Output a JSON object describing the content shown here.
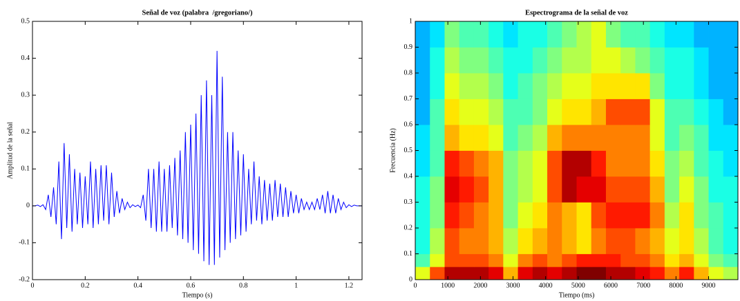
{
  "chart_data": [
    {
      "type": "line",
      "title": "Señal de voz (palabra  /gregoriano/)",
      "xlabel": "Tiempo (s)",
      "ylabel": "Amplitud de la señal",
      "color": "#0000ff",
      "x": [
        0,
        0.01,
        0.02,
        0.03,
        0.04,
        0.05,
        0.06,
        0.07,
        0.08,
        0.09,
        0.1,
        0.11,
        0.12,
        0.13,
        0.14,
        0.15,
        0.16,
        0.17,
        0.18,
        0.19,
        0.2,
        0.21,
        0.22,
        0.23,
        0.24,
        0.25,
        0.26,
        0.27,
        0.28,
        0.29,
        0.3,
        0.31,
        0.32,
        0.33,
        0.34,
        0.35,
        0.36,
        0.37,
        0.38,
        0.39,
        0.4,
        0.41,
        0.42,
        0.43,
        0.44,
        0.45,
        0.46,
        0.47,
        0.48,
        0.49,
        0.5,
        0.51,
        0.52,
        0.53,
        0.54,
        0.55,
        0.56,
        0.57,
        0.58,
        0.59,
        0.6,
        0.61,
        0.62,
        0.63,
        0.64,
        0.65,
        0.66,
        0.67,
        0.68,
        0.69,
        0.7,
        0.71,
        0.72,
        0.73,
        0.74,
        0.75,
        0.76,
        0.77,
        0.78,
        0.79,
        0.8,
        0.81,
        0.82,
        0.83,
        0.84,
        0.85,
        0.86,
        0.87,
        0.88,
        0.89,
        0.9,
        0.91,
        0.92,
        0.93,
        0.94,
        0.95,
        0.96,
        0.97,
        0.98,
        0.99,
        1,
        1.01,
        1.02,
        1.03,
        1.04,
        1.05,
        1.06,
        1.07,
        1.08,
        1.09,
        1.1,
        1.11,
        1.12,
        1.13,
        1.14,
        1.15,
        1.16,
        1.17,
        1.18,
        1.19,
        1.2,
        1.21,
        1.22,
        1.23,
        1.24,
        1.25
      ],
      "values": [
        0,
        0,
        0.002,
        -0.002,
        0.003,
        -0.01,
        0.03,
        -0.03,
        0.05,
        -0.05,
        0.12,
        -0.09,
        0.17,
        -0.06,
        0.14,
        -0.07,
        0.1,
        -0.05,
        0.09,
        -0.06,
        0.08,
        -0.05,
        0.12,
        -0.06,
        0.1,
        -0.05,
        0.11,
        -0.04,
        0.11,
        -0.05,
        0.09,
        -0.03,
        0.04,
        -0.02,
        0.02,
        -0.01,
        0.01,
        -0.005,
        0.003,
        -0.002,
        0.002,
        -0.005,
        0.03,
        -0.04,
        0.1,
        -0.06,
        0.1,
        -0.07,
        0.12,
        -0.07,
        0.1,
        -0.07,
        0.11,
        -0.06,
        0.13,
        -0.08,
        0.15,
        -0.09,
        0.2,
        -0.1,
        0.22,
        -0.12,
        0.25,
        -0.13,
        0.3,
        -0.15,
        0.34,
        -0.16,
        0.3,
        -0.16,
        0.42,
        -0.14,
        0.35,
        -0.12,
        0.2,
        -0.1,
        0.2,
        -0.09,
        0.15,
        -0.08,
        0.14,
        -0.07,
        0.1,
        -0.05,
        0.12,
        -0.04,
        0.08,
        -0.05,
        0.07,
        -0.04,
        0.06,
        -0.04,
        0.07,
        -0.03,
        0.06,
        -0.03,
        0.05,
        -0.03,
        0.04,
        -0.02,
        0.03,
        -0.02,
        0.02,
        -0.01,
        0.01,
        -0.01,
        0.01,
        -0.01,
        0.02,
        -0.01,
        0.03,
        -0.02,
        0.04,
        -0.02,
        0.03,
        -0.02,
        0.02,
        -0.01,
        0.01,
        -0.005,
        0.003,
        -0.002,
        0.002,
        0,
        0,
        0
      ],
      "xlim": [
        0,
        1.25
      ],
      "xticks": [
        0,
        0.2,
        0.4,
        0.6,
        0.8,
        1,
        1.2
      ],
      "ylim": [
        -0.2,
        0.5
      ],
      "yticks": [
        -0.2,
        -0.1,
        0,
        0.1,
        0.2,
        0.3,
        0.4,
        0.5
      ]
    },
    {
      "type": "heatmap",
      "title": "Espectrograma de la señal de voz",
      "xlabel": "Tiempo (ms)",
      "ylabel": "Frecuencia (Hz)",
      "colormap": "jet",
      "zlim": [
        0,
        1
      ],
      "x_edges": [
        0,
        450,
        900,
        1350,
        1800,
        2250,
        2700,
        3150,
        3600,
        4050,
        4500,
        4950,
        5400,
        5850,
        6300,
        6750,
        7200,
        7650,
        8100,
        8550,
        9000,
        9450,
        9900
      ],
      "y_edges": [
        0,
        0.05,
        0.1,
        0.2,
        0.3,
        0.4,
        0.5,
        0.6,
        0.7,
        0.8,
        0.9,
        1
      ],
      "z": [
        [
          0.6,
          0.8,
          0.95,
          0.95,
          0.95,
          0.9,
          0.7,
          0.9,
          0.95,
          0.9,
          0.95,
          1.0,
          1.0,
          0.95,
          0.95,
          0.9,
          0.85,
          0.75,
          0.85,
          0.7,
          0.6,
          0.55
        ],
        [
          0.45,
          0.6,
          0.8,
          0.8,
          0.8,
          0.75,
          0.6,
          0.75,
          0.8,
          0.75,
          0.8,
          0.85,
          0.85,
          0.85,
          0.8,
          0.8,
          0.75,
          0.65,
          0.7,
          0.6,
          0.5,
          0.45
        ],
        [
          0.4,
          0.55,
          0.8,
          0.75,
          0.75,
          0.7,
          0.55,
          0.65,
          0.7,
          0.75,
          0.7,
          0.65,
          0.75,
          0.8,
          0.8,
          0.75,
          0.7,
          0.6,
          0.65,
          0.55,
          0.45,
          0.4
        ],
        [
          0.4,
          0.5,
          0.85,
          0.8,
          0.75,
          0.7,
          0.5,
          0.6,
          0.65,
          0.75,
          0.7,
          0.65,
          0.8,
          0.85,
          0.85,
          0.85,
          0.75,
          0.55,
          0.65,
          0.5,
          0.45,
          0.4
        ],
        [
          0.4,
          0.5,
          0.9,
          0.85,
          0.8,
          0.7,
          0.5,
          0.55,
          0.6,
          0.8,
          0.95,
          0.9,
          0.9,
          0.8,
          0.8,
          0.8,
          0.7,
          0.5,
          0.6,
          0.5,
          0.4,
          0.4
        ],
        [
          0.35,
          0.45,
          0.85,
          0.8,
          0.75,
          0.7,
          0.5,
          0.55,
          0.6,
          0.8,
          0.95,
          0.95,
          0.85,
          0.75,
          0.75,
          0.75,
          0.65,
          0.5,
          0.55,
          0.45,
          0.4,
          0.35
        ],
        [
          0.35,
          0.45,
          0.7,
          0.65,
          0.65,
          0.6,
          0.45,
          0.5,
          0.55,
          0.7,
          0.75,
          0.75,
          0.75,
          0.75,
          0.75,
          0.75,
          0.6,
          0.45,
          0.5,
          0.45,
          0.35,
          0.35
        ],
        [
          0.3,
          0.45,
          0.65,
          0.6,
          0.6,
          0.55,
          0.45,
          0.45,
          0.5,
          0.6,
          0.65,
          0.65,
          0.7,
          0.8,
          0.8,
          0.8,
          0.6,
          0.45,
          0.45,
          0.4,
          0.35,
          0.3
        ],
        [
          0.3,
          0.4,
          0.6,
          0.55,
          0.55,
          0.5,
          0.4,
          0.45,
          0.5,
          0.55,
          0.6,
          0.6,
          0.65,
          0.65,
          0.65,
          0.65,
          0.5,
          0.4,
          0.4,
          0.35,
          0.3,
          0.3
        ],
        [
          0.3,
          0.4,
          0.55,
          0.5,
          0.5,
          0.45,
          0.4,
          0.4,
          0.45,
          0.5,
          0.55,
          0.55,
          0.6,
          0.6,
          0.55,
          0.5,
          0.45,
          0.4,
          0.4,
          0.35,
          0.3,
          0.3
        ],
        [
          0.3,
          0.35,
          0.5,
          0.45,
          0.45,
          0.4,
          0.35,
          0.4,
          0.4,
          0.45,
          0.5,
          0.55,
          0.6,
          0.5,
          0.45,
          0.45,
          0.4,
          0.35,
          0.35,
          0.3,
          0.3,
          0.3
        ]
      ],
      "xlim": [
        0,
        9900
      ],
      "xticks": [
        0,
        1000,
        2000,
        3000,
        4000,
        5000,
        6000,
        7000,
        8000,
        9000
      ],
      "ylim": [
        0,
        1
      ],
      "yticks": [
        0,
        0.1,
        0.2,
        0.3,
        0.4,
        0.5,
        0.6,
        0.7,
        0.8,
        0.9,
        1
      ]
    }
  ]
}
